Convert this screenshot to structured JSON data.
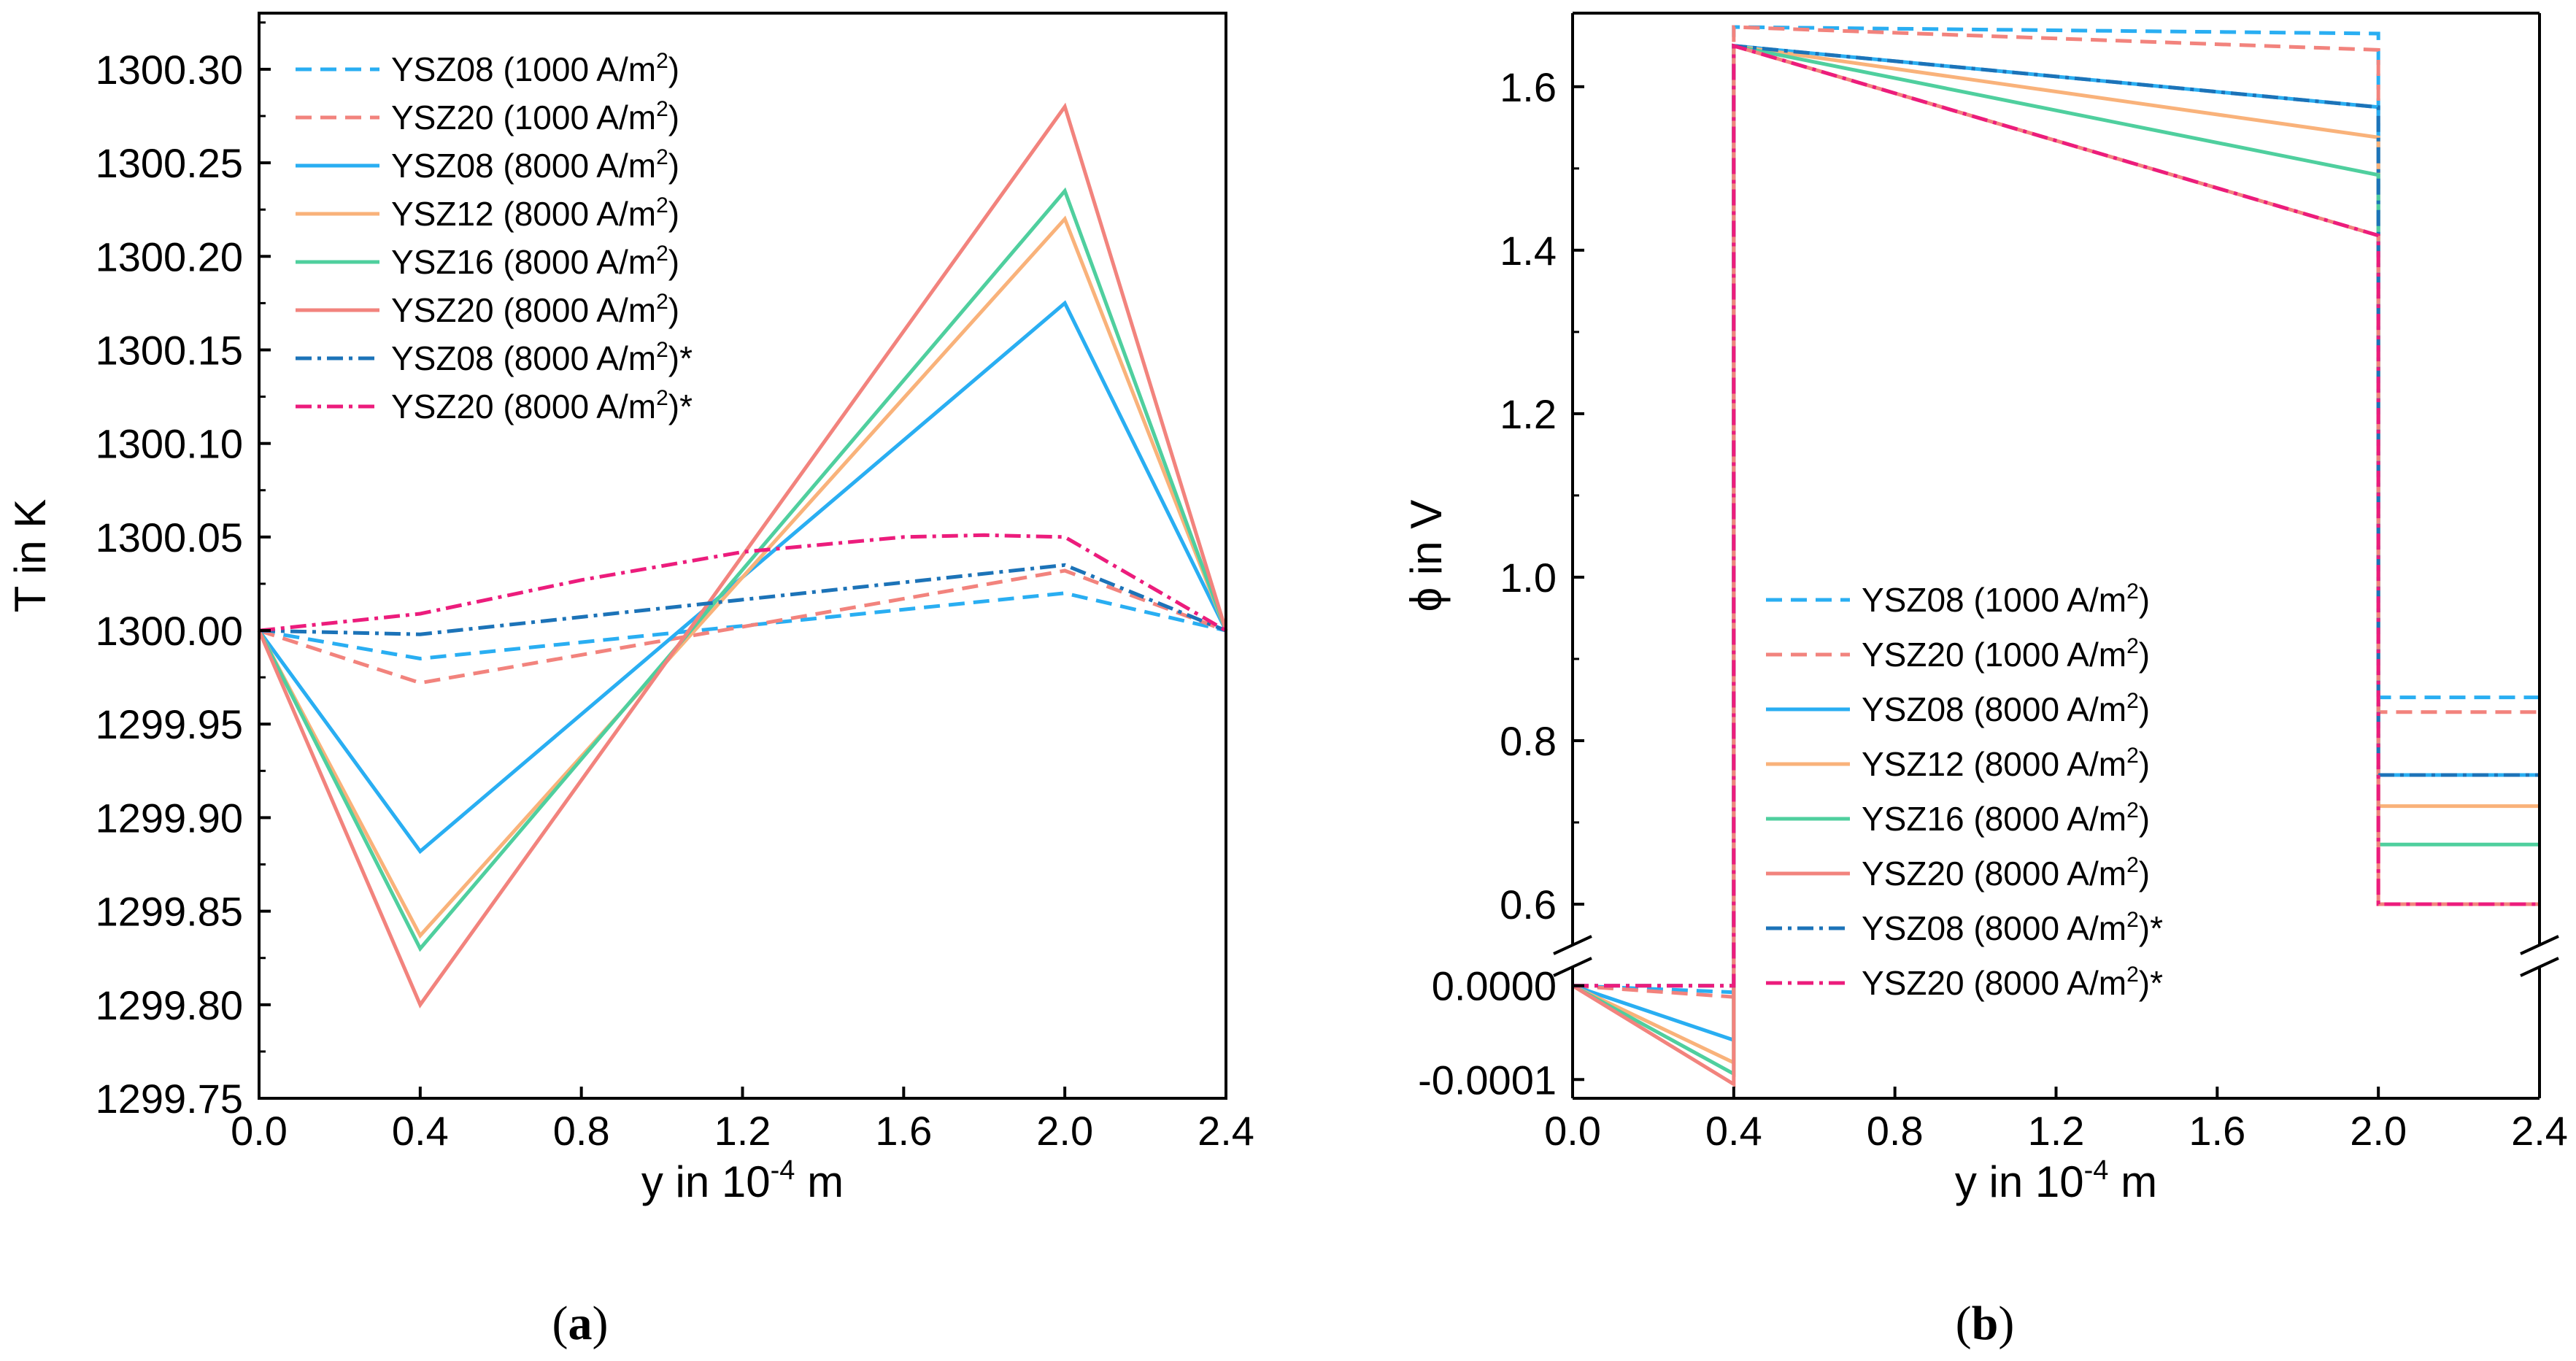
{
  "figure": {
    "panel_a_label": [
      "(",
      "a",
      ")"
    ],
    "panel_b_label": [
      "(",
      "b",
      ")"
    ]
  },
  "colors": {
    "ysz08_light": "#29aef2",
    "ysz20_light": "#f2837d",
    "ysz12": "#f9b27a",
    "ysz16": "#4fcf9e",
    "ysz08_dark": "#1c73b8",
    "ysz20_dark": "#ec1c7c"
  },
  "chart_data": [
    {
      "type": "line",
      "panel": "a",
      "xlabel": "y in 10",
      "xlabel_exp": "-4",
      "xlabel_unit": " m",
      "ylabel": "T in K",
      "xlim": [
        0.0,
        2.4
      ],
      "ylim": [
        1299.75,
        1300.33
      ],
      "x_ticks": [
        "0.0",
        "0.4",
        "0.8",
        "1.2",
        "1.6",
        "2.0",
        "2.4"
      ],
      "y_ticks": [
        "1299.75",
        "1299.80",
        "1299.85",
        "1299.90",
        "1299.95",
        "1300.00",
        "1300.05",
        "1300.10",
        "1300.15",
        "1300.20",
        "1300.25",
        "1300.30"
      ],
      "x": [
        0.0,
        0.4,
        2.0,
        2.4
      ],
      "legend_position": "top-left",
      "series": [
        {
          "name": "YSZ08 (1000 A/m",
          "sup": "2",
          "tail": ")",
          "style": "dash",
          "color_key": "ysz08_light",
          "values": [
            1300.0,
            1299.985,
            1300.02,
            1300.0
          ]
        },
        {
          "name": "YSZ20 (1000 A/m",
          "sup": "2",
          "tail": ")",
          "style": "dash",
          "color_key": "ysz20_light",
          "values": [
            1300.0,
            1299.972,
            1300.032,
            1300.0
          ]
        },
        {
          "name": "YSZ08 (8000 A/m",
          "sup": "2",
          "tail": ")",
          "style": "solid",
          "color_key": "ysz08_light",
          "values": [
            1300.0,
            1299.882,
            1300.175,
            1300.0
          ]
        },
        {
          "name": "YSZ12 (8000 A/m",
          "sup": "2",
          "tail": ")",
          "style": "solid",
          "color_key": "ysz12",
          "values": [
            1300.0,
            1299.837,
            1300.22,
            1300.0
          ]
        },
        {
          "name": "YSZ16 (8000 A/m",
          "sup": "2",
          "tail": ")",
          "style": "solid",
          "color_key": "ysz16",
          "values": [
            1300.0,
            1299.83,
            1300.235,
            1300.0
          ]
        },
        {
          "name": "YSZ20 (8000 A/m",
          "sup": "2",
          "tail": ")",
          "style": "solid",
          "color_key": "ysz20_light",
          "values": [
            1300.0,
            1299.8,
            1300.28,
            1300.0
          ]
        },
        {
          "name": "YSZ08 (8000 A/m",
          "sup": "2",
          "tail": ")*",
          "style": "dashdot",
          "color_key": "ysz08_dark",
          "values": [
            1300.0,
            1299.998,
            1300.035,
            1300.0
          ]
        },
        {
          "name": "YSZ20 (8000 A/m",
          "sup": "2",
          "tail": ")*",
          "style": "dashdot",
          "color_key": "ysz20_dark",
          "values": [
            1300.0,
            1300.009,
            1300.05,
            1300.0
          ],
          "extra_points": [
            [
              0.8,
              1300.027
            ],
            [
              1.2,
              1300.042
            ],
            [
              1.6,
              1300.05
            ],
            [
              1.8,
              1300.051
            ]
          ]
        }
      ]
    },
    {
      "type": "line",
      "panel": "b",
      "xlabel": "y in 10",
      "xlabel_exp": "-4",
      "xlabel_unit": " m",
      "ylabel": "ϕ in V",
      "xlim": [
        0.0,
        2.4
      ],
      "broken_y_axis": true,
      "ylim_upper": [
        0.55,
        1.69
      ],
      "ylim_lower": [
        -0.00012,
        2e-05
      ],
      "x_ticks": [
        "0.0",
        "0.4",
        "0.8",
        "1.2",
        "1.6",
        "2.0",
        "2.4"
      ],
      "y_ticks_upper": [
        "0.6",
        "0.8",
        "1.0",
        "1.2",
        "1.4",
        "1.6"
      ],
      "y_ticks_lower": [
        "0.0000",
        "-0.0001"
      ],
      "legend_position": "center-left",
      "series": [
        {
          "name": "YSZ08 (1000 A/m",
          "sup": "2",
          "tail": ")",
          "style": "dash",
          "color_key": "ysz08_light",
          "anode": [
            [
              0.0,
              0.0
            ],
            [
              0.4,
              -7e-06
            ]
          ],
          "electrolyte": [
            [
              0.4,
              1.673
            ],
            [
              2.0,
              1.665
            ]
          ],
          "cathode": [
            [
              2.0,
              0.853
            ],
            [
              2.4,
              0.853
            ]
          ]
        },
        {
          "name": "YSZ20 (1000 A/m",
          "sup": "2",
          "tail": ")",
          "style": "dash",
          "color_key": "ysz20_light",
          "anode": [
            [
              0.0,
              0.0
            ],
            [
              0.4,
              -1.2e-05
            ]
          ],
          "electrolyte": [
            [
              0.4,
              1.673
            ],
            [
              2.0,
              1.645
            ]
          ],
          "cathode": [
            [
              2.0,
              0.835
            ],
            [
              2.4,
              0.835
            ]
          ]
        },
        {
          "name": "YSZ08 (8000 A/m",
          "sup": "2",
          "tail": ")",
          "style": "solid",
          "color_key": "ysz08_light",
          "anode": [
            [
              0.0,
              0.0
            ],
            [
              0.4,
              -5.8e-05
            ]
          ],
          "electrolyte": [
            [
              0.4,
              1.65
            ],
            [
              2.0,
              1.575
            ]
          ],
          "cathode": [
            [
              2.0,
              0.758
            ],
            [
              2.4,
              0.758
            ]
          ]
        },
        {
          "name": "YSZ12 (8000 A/m",
          "sup": "2",
          "tail": ")",
          "style": "solid",
          "color_key": "ysz12",
          "anode": [
            [
              0.0,
              0.0
            ],
            [
              0.4,
              -8.2e-05
            ]
          ],
          "electrolyte": [
            [
              0.4,
              1.65
            ],
            [
              2.0,
              1.538
            ]
          ],
          "cathode": [
            [
              2.0,
              0.72
            ],
            [
              2.4,
              0.72
            ]
          ]
        },
        {
          "name": "YSZ16 (8000 A/m",
          "sup": "2",
          "tail": ")",
          "style": "solid",
          "color_key": "ysz16",
          "anode": [
            [
              0.0,
              0.0
            ],
            [
              0.4,
              -9.4e-05
            ]
          ],
          "electrolyte": [
            [
              0.4,
              1.65
            ],
            [
              2.0,
              1.492
            ]
          ],
          "cathode": [
            [
              2.0,
              0.673
            ],
            [
              2.4,
              0.673
            ]
          ]
        },
        {
          "name": "YSZ20 (8000 A/m",
          "sup": "2",
          "tail": ")",
          "style": "solid",
          "color_key": "ysz20_light",
          "anode": [
            [
              0.0,
              0.0
            ],
            [
              0.4,
              -0.000105
            ]
          ],
          "electrolyte": [
            [
              0.4,
              1.65
            ],
            [
              2.0,
              1.418
            ]
          ],
          "cathode": [
            [
              2.0,
              0.6
            ],
            [
              2.4,
              0.6
            ]
          ]
        },
        {
          "name": "YSZ08 (8000 A/m",
          "sup": "2",
          "tail": ")*",
          "style": "dashdot",
          "color_key": "ysz08_dark",
          "anode": [
            [
              0.0,
              0.0
            ],
            [
              0.4,
              0.0
            ]
          ],
          "electrolyte": [
            [
              0.4,
              1.65
            ],
            [
              2.0,
              1.575
            ]
          ],
          "cathode": [
            [
              2.0,
              0.758
            ],
            [
              2.4,
              0.758
            ]
          ]
        },
        {
          "name": "YSZ20 (8000 A/m",
          "sup": "2",
          "tail": ")*",
          "style": "dashdot",
          "color_key": "ysz20_dark",
          "anode": [
            [
              0.0,
              0.0
            ],
            [
              0.4,
              0.0
            ]
          ],
          "electrolyte": [
            [
              0.4,
              1.65
            ],
            [
              2.0,
              1.418
            ]
          ],
          "cathode": [
            [
              2.0,
              0.6
            ],
            [
              2.4,
              0.6
            ]
          ]
        }
      ]
    }
  ]
}
